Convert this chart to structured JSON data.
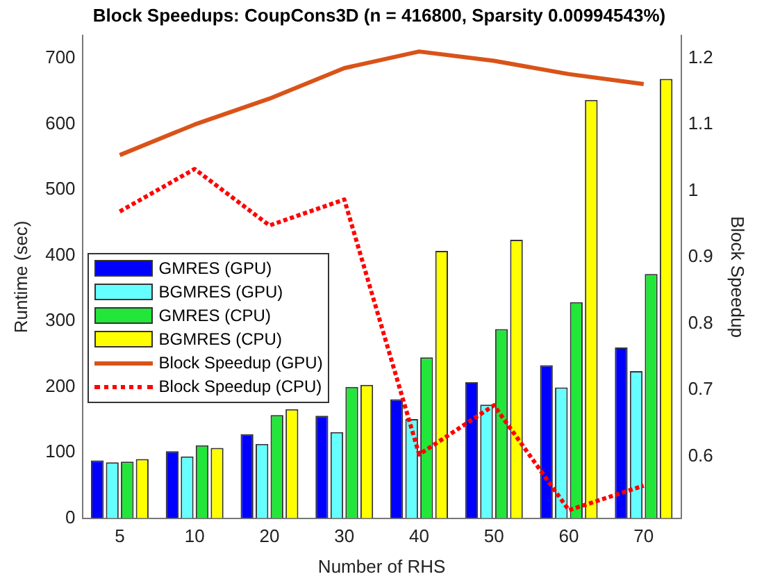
{
  "chart_data": {
    "type": "bar",
    "title": "Block Speedups: CoupCons3D (n = 416800, Sparsity 0.00994543%)",
    "xlabel": "Number of RHS",
    "ylabel": "Runtime (sec)",
    "y2label": "Block Speedup",
    "categories": [
      "5",
      "10",
      "20",
      "30",
      "40",
      "50",
      "60",
      "70"
    ],
    "series": [
      {
        "name": "GMRES (GPU)",
        "color": "#0000ff",
        "values": [
          88,
          102,
          128,
          156,
          181,
          207,
          233,
          260
        ]
      },
      {
        "name": "BGMRES (GPU)",
        "color": "#66ffff",
        "values": [
          85,
          94,
          113,
          131,
          151,
          173,
          199,
          224
        ]
      },
      {
        "name": "GMRES (CPU)",
        "color": "#22e63a",
        "values": [
          86,
          111,
          157,
          200,
          245,
          288,
          329,
          372
        ]
      },
      {
        "name": "BGMRES (CPU)",
        "color": "#ffff00",
        "values": [
          90,
          107,
          166,
          203,
          407,
          424,
          637,
          669
        ]
      },
      {
        "name": "Block Speedup (GPU)",
        "type": "line",
        "axis": "y2",
        "color": "#d95319",
        "line_style": "solid",
        "values": [
          1.054,
          1.1,
          1.139,
          1.185,
          1.21,
          1.196,
          1.176,
          1.161
        ]
      },
      {
        "name": "Block Speedup (CPU)",
        "type": "line",
        "axis": "y2",
        "color": "#ff0000",
        "line_style": "dotted",
        "values": [
          0.969,
          1.033,
          0.948,
          0.987,
          0.603,
          0.677,
          0.519,
          0.556
        ]
      }
    ],
    "ylim": [
      0,
      735
    ],
    "yticks": [
      0,
      100,
      200,
      300,
      400,
      500,
      600,
      700
    ],
    "y2lim": [
      0.507,
      1.234
    ],
    "y2ticks": [
      0.6,
      0.7,
      0.8,
      0.9,
      1,
      1.1,
      1.2
    ],
    "legend": "left",
    "grid": false,
    "marker": "none"
  }
}
